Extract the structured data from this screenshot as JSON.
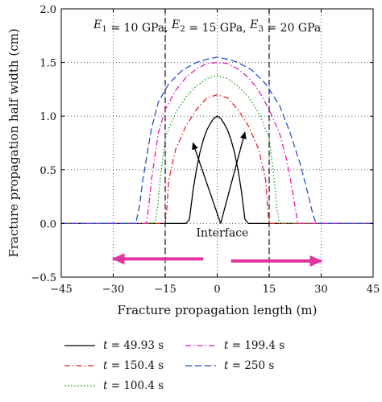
{
  "chart_data": {
    "type": "line",
    "title": "",
    "xlabel": "Fracture propagation length (m)",
    "ylabel": "Fracture propagation half width (cm)",
    "xlim": [
      -45,
      45
    ],
    "ylim": [
      -0.5,
      2.0
    ],
    "xticks": [
      -45,
      -30,
      -15,
      0,
      15,
      30,
      45
    ],
    "xtick_labels": [
      "−45",
      "−30",
      "−15",
      "0",
      "15",
      "30",
      "45"
    ],
    "yticks": [
      -0.5,
      0.0,
      0.5,
      1.0,
      1.5,
      2.0
    ],
    "ytick_labels": [
      "−0.5",
      "0.0",
      "0.5",
      "1.0",
      "1.5",
      "2.0"
    ],
    "grid": true,
    "grid_style": "dotted",
    "legend_position": "bottom, outside plot",
    "annotations": {
      "moduli_prefix": [
        "E",
        "E",
        "E"
      ],
      "moduli_subscripts": [
        "1",
        "2",
        "3"
      ],
      "moduli_values": [
        " = 10 GPa, ",
        " = 15 GPa, ",
        " = 20 GPa"
      ],
      "interface_label": "Interface",
      "interface_x": [
        -15,
        15
      ],
      "arrow_tip_points": [
        [
          -7,
          0.75
        ],
        [
          8,
          0.85
        ]
      ],
      "arrow_origin": [
        1,
        0.0
      ],
      "direction_arrows": [
        [
          -4,
          -30,
          -0.33
        ],
        [
          4,
          30,
          -0.35
        ]
      ]
    },
    "series": [
      {
        "name": "t = 49.93 s",
        "color": "#000000",
        "dash": "solid",
        "x": [
          -45,
          -9,
          -8,
          -7,
          -6,
          -5,
          -4,
          -3,
          -2,
          -1,
          0,
          1,
          2,
          3,
          4,
          5,
          6,
          7,
          8,
          9,
          45
        ],
        "y": [
          0,
          0,
          0.04,
          0.3,
          0.5,
          0.66,
          0.78,
          0.87,
          0.93,
          0.98,
          1.0,
          0.98,
          0.93,
          0.87,
          0.78,
          0.66,
          0.5,
          0.3,
          0.04,
          0,
          0
        ]
      },
      {
        "name": "t = 150.4 s",
        "color": "#e0262a",
        "dash": "dashdot",
        "x": [
          -45,
          -15,
          -14.5,
          -14,
          -12,
          -9,
          -6,
          -3,
          0,
          3,
          6,
          9,
          12,
          14,
          14.5,
          15,
          45
        ],
        "y": [
          0,
          0,
          0.15,
          0.4,
          0.69,
          0.91,
          1.06,
          1.17,
          1.2,
          1.17,
          1.06,
          0.91,
          0.69,
          0.4,
          0.15,
          0,
          0
        ]
      },
      {
        "name": "t = 100.4 s",
        "color": "#1aa01a",
        "dash": "dotted",
        "x": [
          -45,
          -18,
          -17.2,
          -16.5,
          -15,
          -12,
          -9,
          -6,
          -3,
          0,
          3,
          6,
          9,
          12,
          15,
          16.5,
          17.2,
          18,
          45
        ],
        "y": [
          0,
          0,
          0.15,
          0.4,
          0.8,
          1.03,
          1.18,
          1.28,
          1.35,
          1.38,
          1.35,
          1.28,
          1.18,
          1.03,
          0.8,
          0.4,
          0.15,
          0,
          0
        ]
      },
      {
        "name": "t = 199.4 s",
        "color": "#e020b0",
        "dash": "dashdot",
        "x": [
          -45,
          -20.5,
          -19.8,
          -19,
          -17,
          -15,
          -12,
          -9,
          -6,
          -3,
          0,
          3,
          6,
          9,
          12,
          15,
          18,
          20,
          21.5,
          22.5,
          23.3,
          45
        ],
        "y": [
          0,
          0,
          0.15,
          0.4,
          0.84,
          1.06,
          1.24,
          1.36,
          1.44,
          1.49,
          1.5,
          1.49,
          1.44,
          1.36,
          1.24,
          1.06,
          0.84,
          0.6,
          0.35,
          0.15,
          0,
          0
        ]
      },
      {
        "name": "t = 250 s",
        "color": "#2a4fd0",
        "dash": "dashed",
        "x": [
          -45,
          -23.5,
          -22.5,
          -21.5,
          -19,
          -17,
          -14,
          -10,
          -6,
          -3,
          0,
          3,
          6,
          10,
          14,
          18,
          21,
          24,
          26,
          27.5,
          28.5,
          45
        ],
        "y": [
          0,
          0,
          0.15,
          0.4,
          0.88,
          1.13,
          1.3,
          1.43,
          1.5,
          1.53,
          1.55,
          1.53,
          1.5,
          1.43,
          1.3,
          1.1,
          0.85,
          0.55,
          0.3,
          0.1,
          0,
          0
        ]
      }
    ],
    "legend_order": [
      0,
      3,
      1,
      4,
      2
    ],
    "legend_labels": [
      {
        "prefix": "t",
        "rest": " = 49.93 s"
      },
      {
        "prefix": "t",
        "rest": " = 199.4 s"
      },
      {
        "prefix": "t",
        "rest": " = 150.4 s"
      },
      {
        "prefix": "t",
        "rest": " = 250 s"
      },
      {
        "prefix": "t",
        "rest": " = 100.4 s"
      }
    ]
  }
}
